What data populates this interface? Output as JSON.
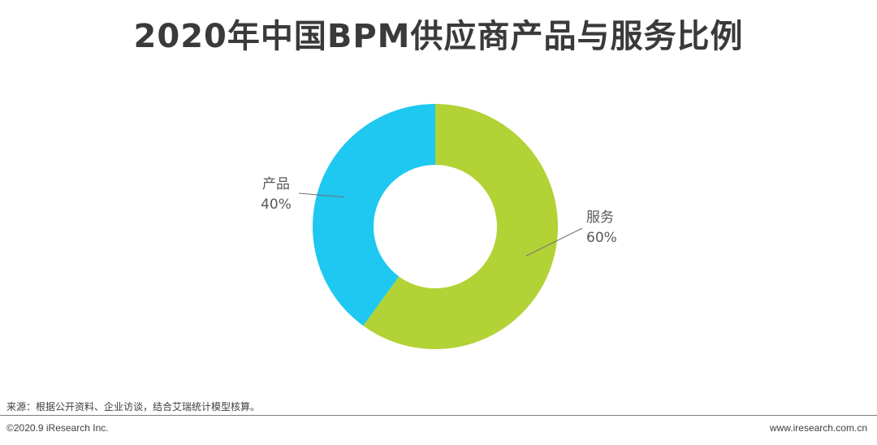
{
  "title": "2020年中国BPM供应商产品与服务比例",
  "chart_data": {
    "type": "pie",
    "donut": true,
    "title": "2020年中国BPM供应商产品与服务比例",
    "slices": [
      {
        "name": "服务",
        "value": 60,
        "label": "60%",
        "color": "#b2d235"
      },
      {
        "name": "产品",
        "value": 40,
        "label": "40%",
        "color": "#1ec8f0"
      }
    ]
  },
  "source": "来源：根据公开资料、企业访谈，结合艾瑞统计模型核算。",
  "footer": {
    "copyright": "©2020.9 iResearch Inc.",
    "website": "www.iresearch.com.cn"
  }
}
